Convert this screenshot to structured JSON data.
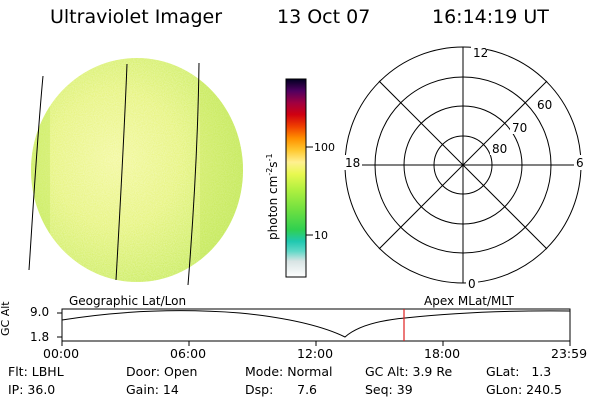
{
  "header": {
    "instrument": "Ultraviolet Imager",
    "date": "13 Oct 07",
    "time": "16:14:19 UT"
  },
  "colorbar": {
    "label": "photon cm",
    "label_sup1": "-2",
    "label_mid": "s",
    "label_sup2": "-1",
    "ticks": [
      {
        "value": "100"
      },
      {
        "value": "10"
      }
    ]
  },
  "polar_plot": {
    "mlt_labels": {
      "top": "12",
      "left": "18",
      "right": "6",
      "bottom": "0"
    },
    "lat_labels": [
      "60",
      "70",
      "80"
    ]
  },
  "labels": {
    "geo": "Geographic Lat/Lon",
    "apex": "Apex MLat/MLT"
  },
  "alt_strip": {
    "axis_label": "GC Alt",
    "ymax": "9.0",
    "ymin": "1.8",
    "time_ticks": [
      "00:00",
      "06:00",
      "12:00",
      "18:00",
      "23:59"
    ]
  },
  "info": {
    "row1": [
      "Flt: LBHL",
      "Door: Open",
      "Mode: Normal",
      "GC Alt: 3.9 Re",
      "GLat:   1.3"
    ],
    "row2": [
      "IP: 36.0",
      "Gain: 14",
      "Dsp:      7.6",
      "Seq: 39",
      "GLon: 240.5"
    ]
  }
}
